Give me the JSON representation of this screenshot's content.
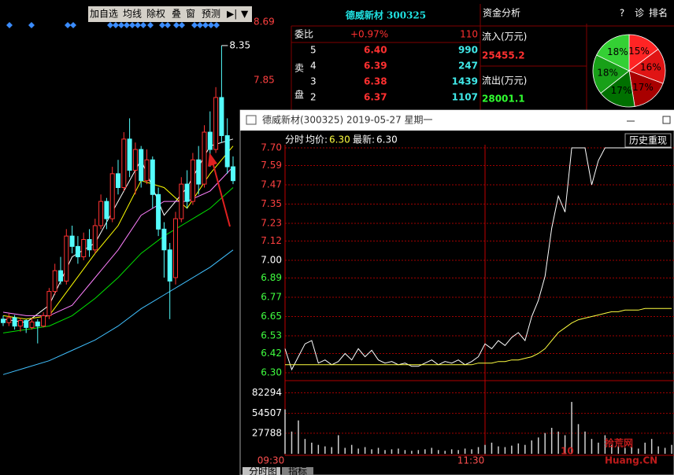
{
  "toolbar": {
    "buttons": [
      "加自选",
      "均线",
      "除权",
      "叠",
      "窗",
      "预测"
    ]
  },
  "header": {
    "stock": "德威新材 300325",
    "panel": "资金分析",
    "icons": [
      "?",
      "诊",
      "排名"
    ]
  },
  "order_book": {
    "ratio_label": "委比",
    "ratio": "+0.97%",
    "ratio_volume": "110",
    "side": [
      "卖",
      "盘"
    ],
    "levels": [
      {
        "level": "5",
        "price": "6.40",
        "volume": "990"
      },
      {
        "level": "4",
        "price": "6.39",
        "volume": "247"
      },
      {
        "level": "3",
        "price": "6.38",
        "volume": "1439"
      },
      {
        "level": "2",
        "price": "6.37",
        "volume": "1107"
      }
    ]
  },
  "fund_flow": {
    "inflow_label": "流入(万元)",
    "inflow": "25455.2",
    "outflow_label": "流出(万元)",
    "outflow": "28001.1"
  },
  "popup": {
    "title": "德威新材(300325) 2019-05-27 星期一",
    "mode": "分时",
    "avg_label": "均价:",
    "avg": "6.30",
    "last_label": "最新:",
    "last": "6.30",
    "button": "历史重现"
  },
  "tabs": [
    "分时图",
    "指标"
  ],
  "watermark": {
    "logo": "10",
    "name": "拾荒网",
    "site": "Huang.CN"
  },
  "chart_data": [
    {
      "type": "candlestick",
      "open": [
        4.4,
        4.35,
        4.42,
        4.3,
        4.38,
        4.28,
        4.36,
        4.3,
        4.45,
        4.8,
        5.1,
        4.95,
        5.6,
        5.45,
        5.3,
        5.55,
        5.4,
        5.75,
        6.1,
        5.85,
        6.5,
        6.3,
        7.0,
        6.55,
        6.85,
        6.4,
        6.7,
        6.2,
        5.7,
        5.4,
        5.0,
        5.85,
        6.35,
        6.1,
        6.7,
        6.35,
        7.1,
        6.85,
        7.6,
        7.05,
        6.6
      ],
      "high": [
        4.45,
        4.48,
        4.46,
        4.42,
        4.4,
        4.42,
        4.4,
        4.5,
        4.85,
        5.2,
        5.3,
        5.7,
        5.75,
        5.6,
        5.65,
        5.7,
        5.85,
        6.2,
        6.15,
        6.6,
        6.7,
        7.1,
        7.3,
        6.95,
        6.9,
        6.85,
        6.75,
        6.3,
        5.8,
        5.5,
        5.95,
        6.45,
        6.55,
        6.8,
        6.9,
        7.2,
        7.4,
        7.75,
        8.35,
        7.3,
        6.75
      ],
      "low": [
        4.3,
        4.3,
        4.25,
        4.22,
        4.2,
        4.25,
        4.05,
        4.28,
        4.4,
        4.75,
        4.9,
        4.9,
        5.35,
        5.2,
        5.25,
        5.3,
        5.35,
        5.7,
        5.7,
        5.8,
        6.2,
        6.25,
        6.45,
        6.2,
        6.3,
        6.35,
        6.0,
        5.6,
        5.0,
        4.4,
        4.9,
        5.8,
        6.0,
        6.05,
        6.2,
        6.3,
        6.6,
        6.8,
        6.95,
        6.5,
        6.35
      ],
      "close": [
        4.35,
        4.42,
        4.3,
        4.38,
        4.28,
        4.36,
        4.3,
        4.45,
        4.8,
        5.1,
        4.95,
        5.6,
        5.45,
        5.3,
        5.55,
        5.4,
        5.75,
        6.1,
        5.85,
        6.5,
        6.3,
        7.0,
        6.55,
        6.85,
        6.4,
        6.7,
        6.2,
        5.7,
        5.4,
        4.95,
        5.85,
        6.35,
        6.1,
        6.7,
        6.35,
        7.1,
        6.85,
        7.6,
        7.05,
        6.6,
        6.4
      ],
      "up_color": "#ff3232",
      "down_color": "#54fcfc",
      "ma_index": [
        0,
        4,
        8,
        12,
        16,
        20,
        24,
        28,
        32,
        36,
        40
      ],
      "series": [
        {
          "color": "#ffffff",
          "values": [
            4.4,
            4.35,
            4.6,
            5.3,
            5.5,
            6.1,
            6.7,
            5.9,
            6.3,
            6.9,
            7.0
          ]
        },
        {
          "color": "#ffff00",
          "values": [
            4.45,
            4.4,
            4.45,
            4.9,
            5.35,
            5.75,
            6.4,
            6.3,
            6.0,
            6.5,
            6.9
          ]
        },
        {
          "color": "#ff80ff",
          "values": [
            4.5,
            4.45,
            4.45,
            4.6,
            5.0,
            5.4,
            5.9,
            6.1,
            6.1,
            6.25,
            6.6
          ]
        },
        {
          "color": "#00e000",
          "values": [
            4.2,
            4.25,
            4.3,
            4.45,
            4.7,
            5.0,
            5.35,
            5.6,
            5.8,
            6.0,
            6.3
          ]
        },
        {
          "color": "#40c0ff",
          "values": [
            3.6,
            3.7,
            3.8,
            3.95,
            4.1,
            4.3,
            4.55,
            4.75,
            4.95,
            5.15,
            5.4
          ]
        }
      ],
      "ylim": [
        2.15,
        8.69
      ],
      "yticks": [
        8.69,
        7.85
      ],
      "ytick_color": "#ff4040",
      "annotation": "8.35"
    },
    {
      "type": "line",
      "x": [
        0,
        4,
        8,
        12,
        16,
        20,
        24,
        28,
        32,
        36,
        40,
        44,
        48,
        52,
        56,
        60,
        64,
        68,
        72,
        76,
        80,
        84,
        88,
        92,
        96,
        100,
        104,
        108,
        112,
        116,
        120,
        124,
        128,
        132,
        136,
        140,
        144,
        148,
        152,
        156,
        160,
        164,
        168,
        172,
        176,
        180,
        184,
        188,
        192,
        196,
        200,
        204,
        208,
        212,
        216,
        220,
        224,
        228,
        232
      ],
      "xlim": [
        0,
        240
      ],
      "xticks": [
        {
          "value": 0,
          "label": "09:30"
        },
        {
          "value": 120,
          "label": "11:30"
        }
      ],
      "series": [
        {
          "color": "#ffffff",
          "values": [
            6.45,
            6.32,
            6.4,
            6.48,
            6.5,
            6.36,
            6.38,
            6.35,
            6.37,
            6.42,
            6.38,
            6.45,
            6.4,
            6.44,
            6.38,
            6.36,
            6.37,
            6.35,
            6.36,
            6.34,
            6.34,
            6.36,
            6.38,
            6.35,
            6.37,
            6.36,
            6.38,
            6.35,
            6.37,
            6.4,
            6.48,
            6.45,
            6.5,
            6.47,
            6.52,
            6.55,
            6.5,
            6.65,
            6.75,
            6.9,
            7.2,
            7.4,
            7.3,
            7.7,
            7.7,
            7.7,
            7.47,
            7.62,
            7.7,
            7.7,
            7.7,
            7.7,
            7.7,
            7.7,
            7.7,
            7.7,
            7.7,
            7.7,
            7.7
          ]
        },
        {
          "color": "#ffff40",
          "values": [
            6.35,
            6.35,
            6.35,
            6.35,
            6.35,
            6.35,
            6.35,
            6.35,
            6.35,
            6.35,
            6.35,
            6.35,
            6.35,
            6.35,
            6.35,
            6.35,
            6.35,
            6.35,
            6.35,
            6.35,
            6.35,
            6.35,
            6.35,
            6.35,
            6.35,
            6.35,
            6.35,
            6.35,
            6.35,
            6.36,
            6.36,
            6.36,
            6.37,
            6.37,
            6.38,
            6.38,
            6.39,
            6.4,
            6.42,
            6.45,
            6.5,
            6.55,
            6.58,
            6.61,
            6.63,
            6.64,
            6.65,
            6.66,
            6.67,
            6.68,
            6.68,
            6.69,
            6.69,
            6.69,
            6.7,
            6.7,
            6.7,
            6.7,
            6.7
          ]
        }
      ],
      "ylim": [
        6.3,
        7.7
      ],
      "yticks": [
        {
          "value": 7.7,
          "label": "7.70"
        },
        7.59,
        7.47,
        7.35,
        7.23,
        7.12,
        {
          "value": 7,
          "label": "7.00"
        },
        6.89,
        6.77,
        6.65,
        6.53,
        6.42,
        {
          "value": 6.3,
          "label": "6.30"
        }
      ],
      "ytick_colors": [
        "#ff4040",
        "#ff4040",
        "#ff4040",
        "#ff4040",
        "#ff4040",
        "#ff4040",
        "#ffffff",
        "#40ff40",
        "#40ff40",
        "#40ff40",
        "#40ff40",
        "#40ff40",
        "#40ff40"
      ],
      "grid": true,
      "volume": {
        "color": "#d0d0d0",
        "ylim": [
          0,
          103000
        ],
        "yticks": [
          82294,
          54507,
          27788
        ],
        "values": [
          60000,
          30000,
          45000,
          20000,
          15000,
          12000,
          10000,
          9000,
          25000,
          8000,
          12000,
          7000,
          9000,
          6000,
          8000,
          5000,
          6000,
          7000,
          5000,
          4000,
          5000,
          6000,
          8000,
          5000,
          4000,
          6000,
          5000,
          7000,
          6000,
          9000,
          12000,
          15000,
          10000,
          9000,
          11000,
          14000,
          12000,
          18000,
          22000,
          28000,
          35000,
          30000,
          25000,
          70000,
          40000,
          30000,
          20000,
          15000,
          25000,
          12000,
          10000,
          8000,
          9000,
          7000,
          15000,
          20000,
          10000,
          8000,
          12000
        ]
      }
    },
    {
      "type": "pie",
      "values": [
        15,
        16,
        17,
        17,
        18,
        18
      ],
      "value_labels": [
        "15%",
        "16%",
        "17%",
        "17%",
        "18%",
        "18%"
      ],
      "colors": [
        "#ff2424",
        "#e01414",
        "#a80000",
        "#007000",
        "#18a018",
        "#34d034"
      ]
    }
  ]
}
